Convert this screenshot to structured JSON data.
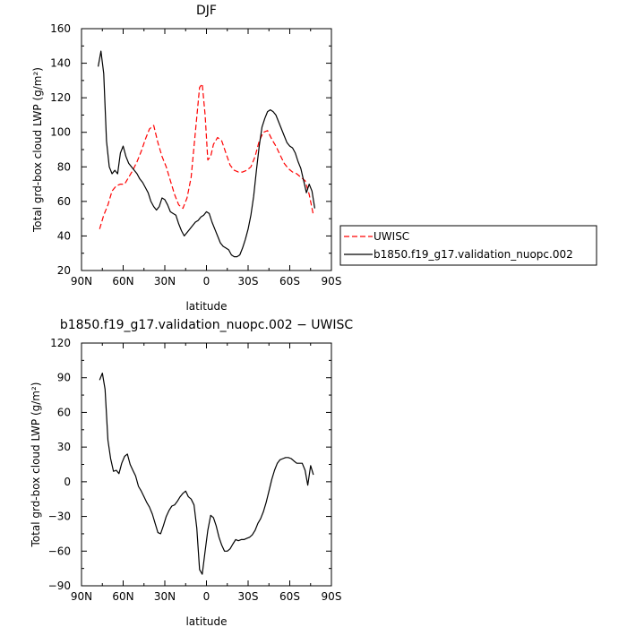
{
  "chart_data": [
    {
      "type": "line",
      "title": "DJF",
      "xlabel": "latitude",
      "ylabel": "Total grd-box cloud LWP (g/m²)",
      "xlim": [
        90,
        -90
      ],
      "ylim": [
        20,
        160
      ],
      "x_ticks": [
        90,
        60,
        30,
        0,
        -30,
        -60,
        -90
      ],
      "x_tick_labels": [
        "90N",
        "60N",
        "30N",
        "0",
        "30S",
        "60S",
        "90S"
      ],
      "y_ticks": [
        20,
        40,
        60,
        80,
        100,
        120,
        140,
        160
      ],
      "y_tick_labels": [
        "20",
        "40",
        "60",
        "80",
        "100",
        "120",
        "140",
        "160"
      ],
      "legend_position": "right",
      "series": [
        {
          "name": "UWISC",
          "color": "#ff0000",
          "dash": "dashed",
          "x": [
            77,
            74,
            71,
            68,
            65,
            62,
            59,
            56,
            53,
            50,
            47,
            44,
            41,
            38,
            35,
            32,
            29,
            26,
            23,
            20,
            17,
            14,
            11,
            8,
            5,
            3,
            1,
            -1,
            -3,
            -5,
            -8,
            -11,
            -14,
            -17,
            -20,
            -23,
            -26,
            -29,
            -32,
            -35,
            -38,
            -41,
            -44,
            -47,
            -50,
            -53,
            -56,
            -59,
            -62,
            -65,
            -68,
            -71,
            -74,
            -77
          ],
          "y": [
            44,
            52,
            58,
            66,
            69,
            70,
            70,
            74,
            78,
            83,
            89,
            96,
            102,
            104,
            94,
            86,
            80,
            72,
            64,
            58,
            56,
            62,
            74,
            100,
            126,
            128,
            110,
            84,
            86,
            93,
            97,
            95,
            88,
            81,
            78,
            77,
            77,
            78,
            80,
            86,
            95,
            100,
            101,
            96,
            92,
            87,
            82,
            79,
            77,
            76,
            74,
            72,
            64,
            52
          ]
        },
        {
          "name": "b1850.f19_g17.validation_nuopc.002",
          "color": "#000000",
          "dash": "solid",
          "x": [
            78,
            76,
            74,
            72,
            70,
            68,
            66,
            64,
            62,
            60,
            58,
            56,
            54,
            52,
            50,
            48,
            46,
            44,
            42,
            40,
            38,
            36,
            34,
            32,
            30,
            28,
            26,
            24,
            22,
            20,
            18,
            16,
            14,
            12,
            10,
            8,
            6,
            4,
            2,
            0,
            -2,
            -4,
            -6,
            -8,
            -10,
            -12,
            -14,
            -16,
            -18,
            -20,
            -22,
            -24,
            -26,
            -28,
            -30,
            -32,
            -34,
            -36,
            -38,
            -40,
            -42,
            -44,
            -46,
            -48,
            -50,
            -52,
            -54,
            -56,
            -58,
            -60,
            -62,
            -64,
            -66,
            -68,
            -70,
            -72,
            -74,
            -76,
            -78
          ],
          "y": [
            138,
            147,
            134,
            95,
            80,
            76,
            78,
            76,
            88,
            92,
            86,
            82,
            80,
            78,
            76,
            73,
            71,
            68,
            65,
            60,
            57,
            55,
            57,
            62,
            61,
            58,
            54,
            53,
            52,
            47,
            43,
            40,
            42,
            44,
            46,
            48,
            49,
            51,
            52,
            54,
            53,
            48,
            44,
            40,
            36,
            34,
            33,
            32,
            29,
            28,
            28,
            29,
            33,
            38,
            44,
            52,
            63,
            78,
            92,
            103,
            108,
            112,
            113,
            112,
            110,
            106,
            102,
            98,
            94,
            92,
            91,
            88,
            83,
            79,
            72,
            65,
            70,
            66,
            56
          ]
        }
      ]
    },
    {
      "type": "line",
      "title": "b1850.f19_g17.validation_nuopc.002 − UWISC",
      "xlabel": "latitude",
      "ylabel": "Total grd-box cloud LWP (g/m²)",
      "xlim": [
        90,
        -90
      ],
      "ylim": [
        -90,
        120
      ],
      "x_ticks": [
        90,
        60,
        30,
        0,
        -30,
        -60,
        -90
      ],
      "x_tick_labels": [
        "90N",
        "60N",
        "30N",
        "0",
        "30S",
        "60S",
        "90S"
      ],
      "y_ticks": [
        -90,
        -60,
        -30,
        0,
        30,
        60,
        90,
        120
      ],
      "y_tick_labels": [
        "−90",
        "−60",
        "−30",
        "0",
        "30",
        "60",
        "90",
        "120"
      ],
      "series": [
        {
          "color": "#000000",
          "dash": "solid",
          "x": [
            77,
            75,
            73,
            71,
            69,
            67,
            65,
            63,
            61,
            59,
            57,
            55,
            53,
            51,
            49,
            47,
            45,
            43,
            41,
            39,
            37,
            35,
            33,
            31,
            29,
            27,
            25,
            23,
            21,
            19,
            17,
            15,
            13,
            11,
            9,
            7,
            5,
            3,
            1,
            -1,
            -3,
            -5,
            -7,
            -9,
            -11,
            -13,
            -15,
            -17,
            -19,
            -21,
            -23,
            -25,
            -27,
            -29,
            -31,
            -33,
            -35,
            -37,
            -39,
            -41,
            -43,
            -45,
            -47,
            -49,
            -51,
            -53,
            -55,
            -57,
            -59,
            -61,
            -63,
            -65,
            -67,
            -69,
            -71,
            -73,
            -75,
            -77
          ],
          "y": [
            88,
            94,
            80,
            36,
            20,
            9,
            10,
            7,
            16,
            22,
            24,
            15,
            10,
            5,
            -4,
            -8,
            -13,
            -18,
            -22,
            -28,
            -36,
            -44,
            -45,
            -38,
            -30,
            -25,
            -21,
            -20,
            -17,
            -13,
            -10,
            -8,
            -13,
            -15,
            -20,
            -40,
            -76,
            -80,
            -60,
            -42,
            -29,
            -31,
            -38,
            -48,
            -55,
            -60,
            -60,
            -58,
            -54,
            -50,
            -51,
            -50,
            -50,
            -49,
            -48,
            -46,
            -42,
            -36,
            -32,
            -26,
            -18,
            -8,
            2,
            10,
            16,
            19,
            20,
            21,
            21,
            20,
            18,
            16,
            16,
            16,
            10,
            -3,
            14,
            6
          ]
        }
      ]
    }
  ]
}
